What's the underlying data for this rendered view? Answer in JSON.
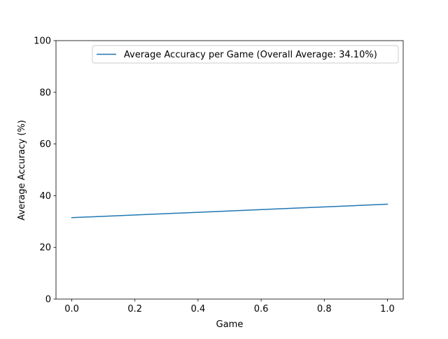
{
  "chart_data": {
    "type": "line",
    "title": "",
    "xlabel": "Game",
    "ylabel": "Average Accuracy (%)",
    "xlim": [
      -0.05,
      1.05
    ],
    "ylim": [
      0,
      100
    ],
    "xticks": [
      0.0,
      0.2,
      0.4,
      0.6,
      0.8,
      1.0
    ],
    "xtick_labels": [
      "0.0",
      "0.2",
      "0.4",
      "0.6",
      "0.8",
      "1.0"
    ],
    "yticks": [
      0,
      20,
      40,
      60,
      80,
      100
    ],
    "ytick_labels": [
      "0",
      "20",
      "40",
      "60",
      "80",
      "100"
    ],
    "grid": false,
    "legend_position": "top-right",
    "series": [
      {
        "name": "Average Accuracy per Game (Overall Average: 34.10%)",
        "color": "#1f77b4",
        "x": [
          0,
          1
        ],
        "y": [
          31.5,
          36.7
        ]
      }
    ]
  }
}
